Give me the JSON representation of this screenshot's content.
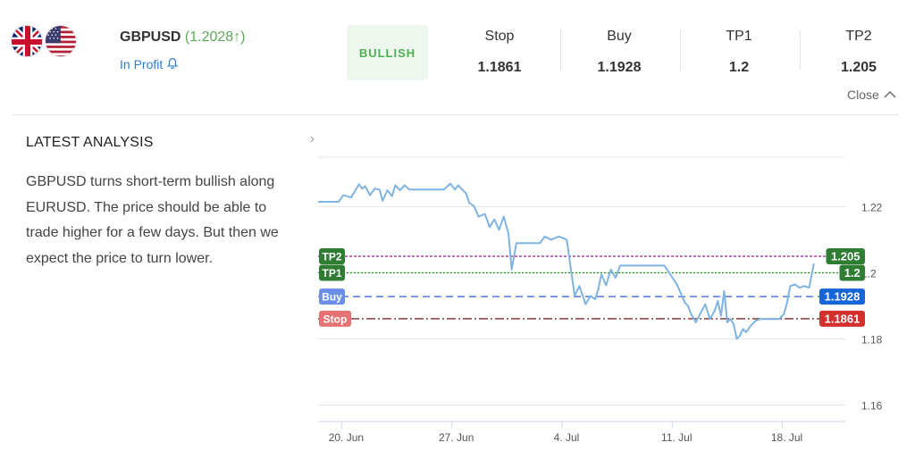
{
  "header": {
    "symbol": "GBPUSD",
    "price_text": "(1.2028↑)",
    "status": "In Profit",
    "signal": "BULLISH",
    "levels": [
      {
        "label": "Stop",
        "value": "1.1861"
      },
      {
        "label": "Buy",
        "value": "1.1928"
      },
      {
        "label": "TP1",
        "value": "1.2"
      },
      {
        "label": "TP2",
        "value": "1.205"
      }
    ],
    "close_label": "Close"
  },
  "analysis": {
    "title": "LATEST ANALYSIS",
    "text": "GBPUSD turns short-term bullish along EURUSD. The price should be able to trade higher for a few days. But then we expect the price to turn lower."
  },
  "colors": {
    "price_line": "#7fb3e0",
    "tp2": "#8a1f8a",
    "tp1": "#1f8a1f",
    "buy": "#2e5bd8",
    "stop": "#7a2a2a",
    "tp2_badge": "#2e7d32",
    "tp1_badge": "#2e7d32",
    "buy_badge": "#1565d8",
    "stop_badge": "#d32f2f",
    "stop_left_badge": "#e57373",
    "buy_left_badge": "#6b8fe8",
    "bullish_bg": "#eef7ee",
    "bullish_text": "#4fae55",
    "link": "#2b7bd0"
  },
  "chart_data": {
    "type": "line",
    "x_ticks": [
      "20. Jun",
      "27. Jun",
      "4. Jul",
      "11. Jul",
      "18. Jul"
    ],
    "y_ticks": [
      "1.22",
      "1.2",
      "1.18",
      "1.16"
    ],
    "ylim": [
      1.155,
      1.235
    ],
    "xlim": [
      0,
      33.5
    ],
    "tick_positions": [
      1.5,
      8.5,
      15.5,
      22.5,
      29.5
    ],
    "levels": [
      {
        "name": "TP2",
        "value": 1.205,
        "value_label": "1.205",
        "dash": "3,2"
      },
      {
        "name": "TP1",
        "value": 1.2,
        "value_label": "1.2",
        "dash": "2,2"
      },
      {
        "name": "Buy",
        "value": 1.1928,
        "value_label": "1.1928",
        "dash": "8,5"
      },
      {
        "name": "Stop",
        "value": 1.1861,
        "value_label": "1.1861",
        "dash": "10,3,2,3"
      }
    ],
    "series": [
      {
        "x": [
          0,
          1.3,
          1.6,
          2.1,
          2.6,
          2.8,
          3.0,
          3.3,
          3.6,
          3.9,
          4.1,
          4.4,
          4.7,
          4.9,
          5.2,
          5.5,
          5.8,
          6.2,
          6.6,
          7.0,
          7.5,
          8.0,
          8.4,
          8.7,
          8.9,
          9.2,
          9.4,
          9.6,
          9.9,
          10.2,
          10.6,
          10.9,
          11.2,
          11.5,
          11.8,
          12.1,
          12.3,
          12.6,
          12.9,
          13.2,
          13.5,
          13.8,
          14.1,
          14.4,
          14.8,
          15.3,
          15.8,
          16.3,
          16.6,
          17.0,
          17.3,
          17.6,
          17.8,
          18.0,
          18.3,
          18.6,
          18.9,
          19.2,
          19.5,
          19.8,
          20.1,
          20.4,
          20.8,
          21.3,
          22.0,
          22.8,
          23.3,
          23.5,
          23.7,
          24.0,
          24.3,
          24.6,
          24.9,
          25.2,
          25.4,
          25.6,
          25.8,
          26.0,
          26.2,
          26.4,
          26.6,
          26.8,
          27.0,
          27.2,
          27.5,
          27.8,
          28.1,
          28.5,
          29.0,
          29.3,
          29.6,
          29.8,
          30.0,
          30.3,
          30.6,
          30.9,
          31.2,
          31.5
        ],
        "y": [
          1.2215,
          1.2215,
          1.2235,
          1.2228,
          1.2268,
          1.2255,
          1.2262,
          1.2235,
          1.2255,
          1.2252,
          1.2218,
          1.225,
          1.2232,
          1.2265,
          1.225,
          1.2265,
          1.2252,
          1.2252,
          1.2252,
          1.2252,
          1.2252,
          1.2252,
          1.227,
          1.2252,
          1.2265,
          1.225,
          1.224,
          1.2212,
          1.2202,
          1.217,
          1.2178,
          1.2138,
          1.2162,
          1.213,
          1.217,
          1.2118,
          1.201,
          1.209,
          1.209,
          1.209,
          1.209,
          1.209,
          1.209,
          1.211,
          1.21,
          1.211,
          1.21,
          1.193,
          1.196,
          1.1905,
          1.193,
          1.192,
          1.195,
          1.1995,
          1.1962,
          1.201,
          1.1985,
          1.2022,
          1.2022,
          1.2022,
          1.2022,
          1.2022,
          1.2022,
          1.2022,
          1.2022,
          1.1965,
          1.191,
          1.19,
          1.1875,
          1.185,
          1.1878,
          1.1905,
          1.186,
          1.1885,
          1.1915,
          1.187,
          1.1945,
          1.185,
          1.186,
          1.1845,
          1.18,
          1.181,
          1.183,
          1.182,
          1.184,
          1.1855,
          1.186,
          1.186,
          1.186,
          1.186,
          1.1875,
          1.191,
          1.196,
          1.1965,
          1.1955,
          1.196,
          1.1955,
          1.2028
        ]
      }
    ]
  }
}
